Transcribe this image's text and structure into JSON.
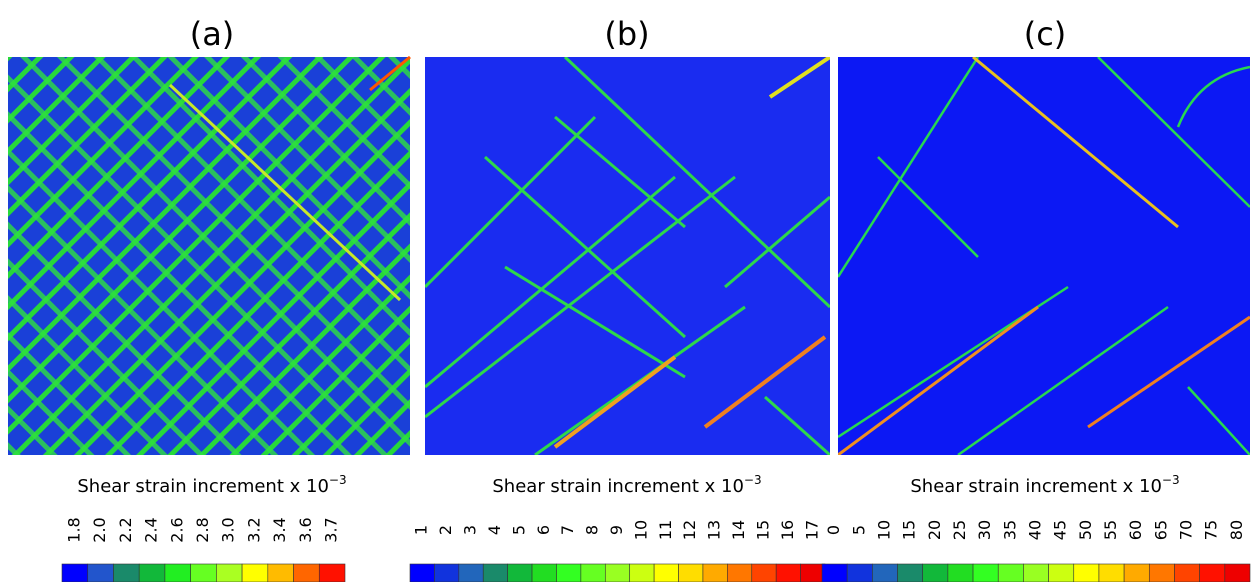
{
  "panels": [
    {
      "label": "(a)",
      "caption": "Shear strain increment x 10",
      "exponent": "−3",
      "ticks": [
        "1.8",
        "2.0",
        "2.2",
        "2.4",
        "2.6",
        "2.8",
        "3.0",
        "3.2",
        "3.4",
        "3.6",
        "3.7"
      ],
      "colors": [
        "#0000ff",
        "#2255cc",
        "#1a8a6a",
        "#12b83a",
        "#22ee22",
        "#66ff22",
        "#aaff22",
        "#ffff00",
        "#ffbb00",
        "#ff6600",
        "#ff1100"
      ]
    },
    {
      "label": "(b)",
      "caption": "Shear strain increment x 10",
      "exponent": "−3",
      "ticks": [
        "1",
        "2",
        "3",
        "4",
        "5",
        "6",
        "7",
        "8",
        "9",
        "10",
        "11",
        "12",
        "13",
        "14",
        "15",
        "16",
        "17"
      ],
      "colors": [
        "#0000ff",
        "#1133dd",
        "#2266bb",
        "#1a8a6a",
        "#12b83a",
        "#22dd22",
        "#33ff22",
        "#66ff22",
        "#99ff22",
        "#ccff11",
        "#ffff00",
        "#ffdd00",
        "#ffaa00",
        "#ff7700",
        "#ff4400",
        "#ff1100",
        "#ee0000"
      ]
    },
    {
      "label": "(c)",
      "caption": "Shear strain increment x 10",
      "exponent": "−3",
      "ticks": [
        "0",
        "5",
        "10",
        "15",
        "20",
        "25",
        "30",
        "35",
        "40",
        "45",
        "50",
        "55",
        "60",
        "65",
        "70",
        "75",
        "80"
      ],
      "colors": [
        "#0000ff",
        "#1133dd",
        "#2266bb",
        "#1a8a6a",
        "#12b83a",
        "#22dd22",
        "#33ff22",
        "#66ff22",
        "#99ff22",
        "#ccff11",
        "#ffff00",
        "#ffdd00",
        "#ffaa00",
        "#ff7700",
        "#ff4400",
        "#ff1100",
        "#ee0000"
      ]
    }
  ]
}
